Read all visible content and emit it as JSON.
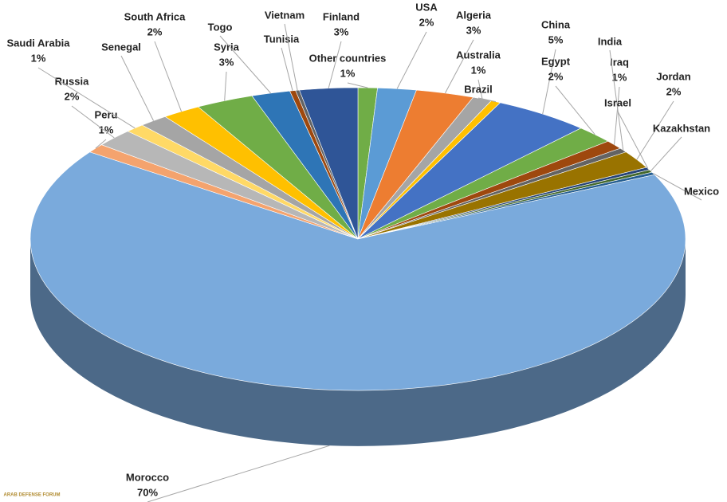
{
  "chart_data": {
    "type": "pie3d",
    "categories": [
      "Other countries",
      "USA",
      "Algeria",
      "Australia",
      "Brazil",
      "China",
      "Egypt",
      "Iraq",
      "India",
      "Jordan",
      "Israel",
      "Kazakhstan",
      "Mexico",
      "Morocco",
      "Peru",
      "Russia",
      "Saudi Arabia",
      "Senegal",
      "South Africa",
      "Syria",
      "Togo",
      "Tunisia",
      "Vietnam",
      "Finland"
    ],
    "values": [
      1,
      2,
      3,
      1,
      0.5,
      5,
      2,
      1,
      0.5,
      2,
      0.3,
      0.3,
      0.3,
      70,
      1,
      2,
      1,
      1.5,
      2,
      3,
      2,
      0.3,
      0.2,
      3
    ],
    "value_labels": [
      "1%",
      "2%",
      "3%",
      "1%",
      null,
      "5%",
      "2%",
      "1%",
      null,
      "2%",
      null,
      null,
      null,
      "70%",
      "1%",
      "2%",
      "1%",
      null,
      "2%",
      "3%",
      null,
      null,
      null,
      "3%"
    ],
    "colors": [
      "#70ad47",
      "#5b9bd5",
      "#ed7d31",
      "#a5a5a5",
      "#ffc000",
      "#4472c4",
      "#70ad47",
      "#9e480e",
      "#636363",
      "#997300",
      "#264478",
      "#43682b",
      "#255e91",
      "#7aaadc",
      "#f4a36e",
      "#b7b7b7",
      "#ffd966",
      "#a5a5a5",
      "#ffc000",
      "#70ad47",
      "#2e75b6",
      "#9e480e",
      "#636363",
      "#2f5597"
    ]
  },
  "watermark": "ARAB DEFENSE FORUM"
}
